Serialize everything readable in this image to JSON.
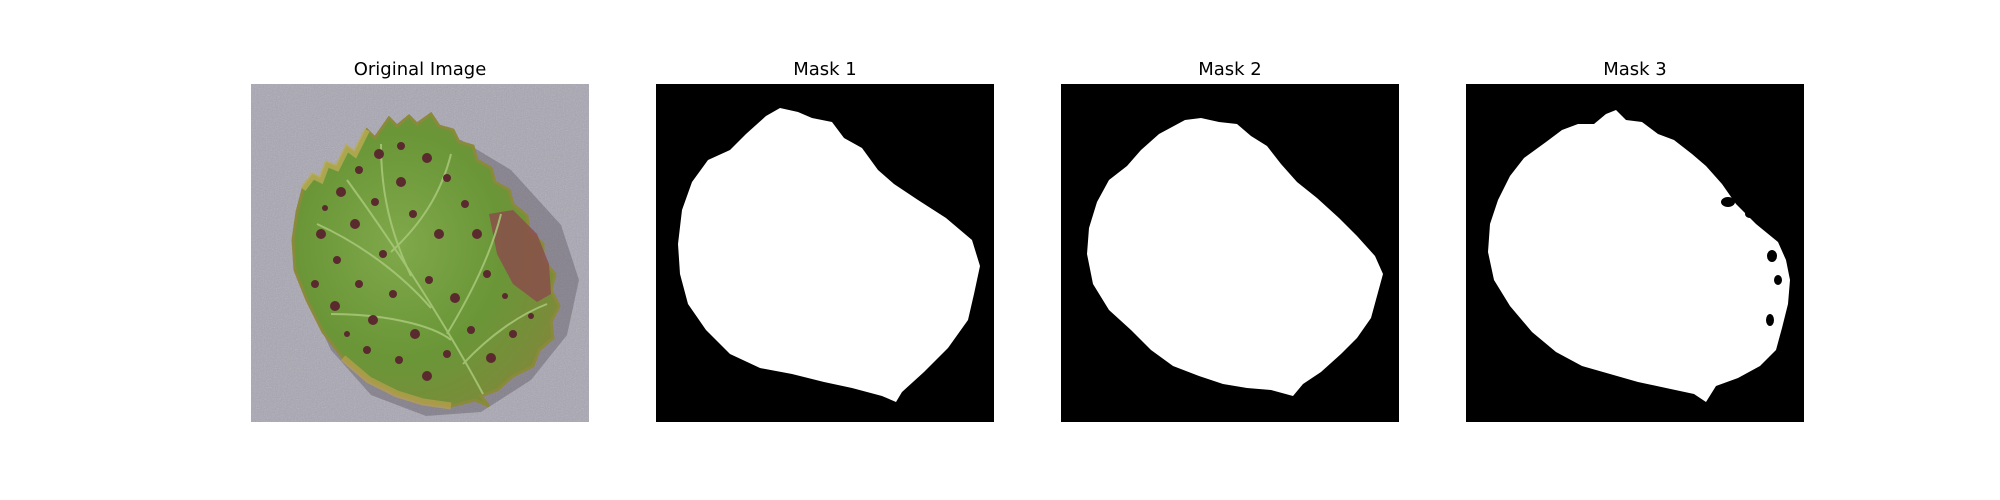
{
  "panels": [
    {
      "title": "Original Image"
    },
    {
      "title": "Mask 1"
    },
    {
      "title": "Mask 2"
    },
    {
      "title": "Mask 3"
    }
  ],
  "colors": {
    "background": "#ffffff",
    "mask_background": "#000000",
    "mask_foreground": "#ffffff",
    "leaf_green": "#6e9a3c",
    "leaf_lesion": "#5b2a2e",
    "surface_gray": "#a9a7b3"
  }
}
